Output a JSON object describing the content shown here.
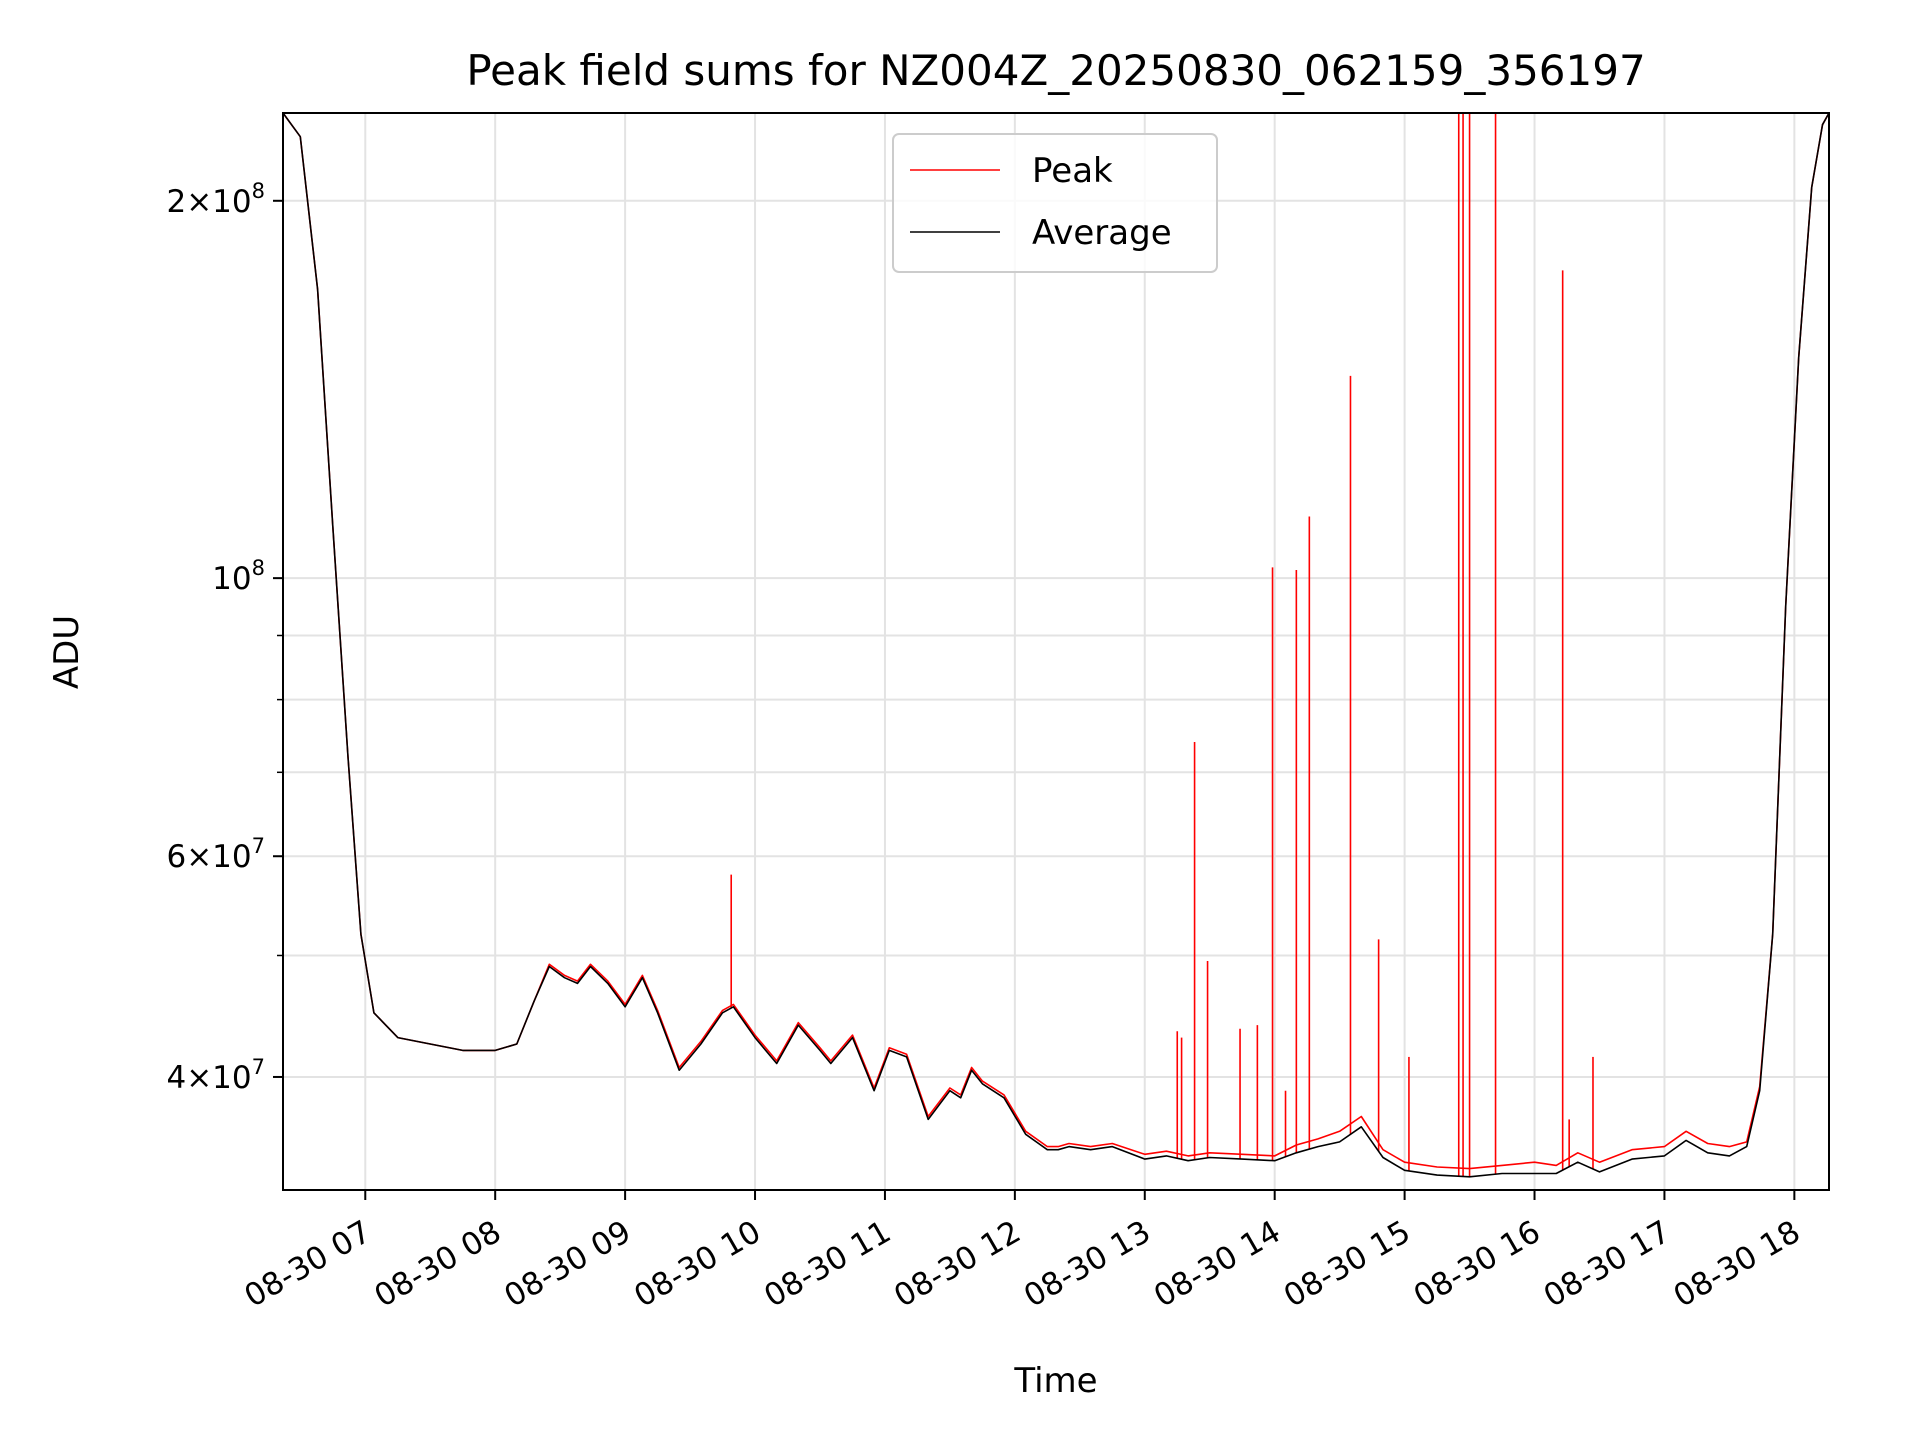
{
  "chart_data": {
    "type": "line",
    "title": "Peak field sums for NZ004Z_20250830_062159_356197",
    "xlabel": "Time",
    "ylabel": "ADU",
    "y_scale": "log",
    "ylim": [
      32500000,
      235000000
    ],
    "xlim": [
      "2025-08-30 06:22",
      "2025-08-30 18:16"
    ],
    "grid": true,
    "legend_position": "upper center",
    "colors": {
      "Peak": "#ff0000",
      "Average": "#000000"
    },
    "x_ticks": [
      "08-30 07",
      "08-30 08",
      "08-30 09",
      "08-30 10",
      "08-30 11",
      "08-30 12",
      "08-30 13",
      "08-30 14",
      "08-30 15",
      "08-30 16",
      "08-30 17",
      "08-30 18"
    ],
    "y_tick_labels": {
      "y4e7": {
        "base": "4×10",
        "exp": "7"
      },
      "y6e7": {
        "base": "6×10",
        "exp": "7"
      },
      "y1e8": {
        "base": "10",
        "exp": "8"
      },
      "y2e8": {
        "base": "2×10",
        "exp": "8"
      }
    },
    "series": [
      {
        "name": "Average",
        "x": [
          "2025-08-30 06:22",
          "2025-08-30 06:30",
          "2025-08-30 06:38",
          "2025-08-30 06:45",
          "2025-08-30 06:52",
          "2025-08-30 06:58",
          "2025-08-30 07:04",
          "2025-08-30 07:15",
          "2025-08-30 07:30",
          "2025-08-30 07:45",
          "2025-08-30 08:00",
          "2025-08-30 08:10",
          "2025-08-30 08:18",
          "2025-08-30 08:25",
          "2025-08-30 08:32",
          "2025-08-30 08:38",
          "2025-08-30 08:44",
          "2025-08-30 08:52",
          "2025-08-30 09:00",
          "2025-08-30 09:08",
          "2025-08-30 09:15",
          "2025-08-30 09:25",
          "2025-08-30 09:35",
          "2025-08-30 09:45",
          "2025-08-30 09:50",
          "2025-08-30 10:00",
          "2025-08-30 10:10",
          "2025-08-30 10:20",
          "2025-08-30 10:30",
          "2025-08-30 10:35",
          "2025-08-30 10:45",
          "2025-08-30 10:55",
          "2025-08-30 11:02",
          "2025-08-30 11:10",
          "2025-08-30 11:20",
          "2025-08-30 11:30",
          "2025-08-30 11:35",
          "2025-08-30 11:40",
          "2025-08-30 11:45",
          "2025-08-30 11:55",
          "2025-08-30 12:05",
          "2025-08-30 12:15",
          "2025-08-30 12:20",
          "2025-08-30 12:25",
          "2025-08-30 12:35",
          "2025-08-30 12:45",
          "2025-08-30 13:00",
          "2025-08-30 13:10",
          "2025-08-30 13:20",
          "2025-08-30 13:30",
          "2025-08-30 13:45",
          "2025-08-30 14:00",
          "2025-08-30 14:10",
          "2025-08-30 14:20",
          "2025-08-30 14:30",
          "2025-08-30 14:40",
          "2025-08-30 14:50",
          "2025-08-30 15:00",
          "2025-08-30 15:15",
          "2025-08-30 15:30",
          "2025-08-30 15:45",
          "2025-08-30 16:00",
          "2025-08-30 16:10",
          "2025-08-30 16:20",
          "2025-08-30 16:30",
          "2025-08-30 16:45",
          "2025-08-30 17:00",
          "2025-08-30 17:10",
          "2025-08-30 17:20",
          "2025-08-30 17:30",
          "2025-08-30 17:38",
          "2025-08-30 17:44",
          "2025-08-30 17:50",
          "2025-08-30 17:56",
          "2025-08-30 18:02",
          "2025-08-30 18:08",
          "2025-08-30 18:13",
          "2025-08-30 18:16"
        ],
        "y": [
          235000000,
          225000000,
          170000000,
          110000000,
          72000000,
          52000000,
          45000000,
          43000000,
          42500000,
          42000000,
          42000000,
          42500000,
          46000000,
          49000000,
          48000000,
          47500000,
          49000000,
          47500000,
          45500000,
          48000000,
          45000000,
          40500000,
          42500000,
          45000000,
          45500000,
          43000000,
          41000000,
          44000000,
          42000000,
          41000000,
          43000000,
          39000000,
          42000000,
          41500000,
          37000000,
          39000000,
          38500000,
          40500000,
          39500000,
          38500000,
          36000000,
          35000000,
          35000000,
          35200000,
          35000000,
          35200000,
          34400000,
          34600000,
          34300000,
          34500000,
          34400000,
          34300000,
          34800000,
          35200000,
          35500000,
          36500000,
          34500000,
          33700000,
          33400000,
          33300000,
          33500000,
          33500000,
          33500000,
          34200000,
          33600000,
          34400000,
          34600000,
          35600000,
          34800000,
          34600000,
          35200000,
          39000000,
          52000000,
          95000000,
          150000000,
          205000000,
          230000000,
          235000000
        ]
      },
      {
        "name": "Peak",
        "x": [
          "2025-08-30 06:22",
          "2025-08-30 06:30",
          "2025-08-30 06:38",
          "2025-08-30 06:45",
          "2025-08-30 06:52",
          "2025-08-30 06:58",
          "2025-08-30 07:04",
          "2025-08-30 07:15",
          "2025-08-30 07:30",
          "2025-08-30 07:45",
          "2025-08-30 08:00",
          "2025-08-30 08:10",
          "2025-08-30 08:18",
          "2025-08-30 08:25",
          "2025-08-30 08:32",
          "2025-08-30 08:38",
          "2025-08-30 08:44",
          "2025-08-30 08:52",
          "2025-08-30 09:00",
          "2025-08-30 09:08",
          "2025-08-30 09:15",
          "2025-08-30 09:25",
          "2025-08-30 09:35",
          "2025-08-30 09:45",
          "2025-08-30 09:50",
          "2025-08-30 10:00",
          "2025-08-30 10:10",
          "2025-08-30 10:20",
          "2025-08-30 10:30",
          "2025-08-30 10:35",
          "2025-08-30 10:45",
          "2025-08-30 10:55",
          "2025-08-30 11:02",
          "2025-08-30 11:10",
          "2025-08-30 11:20",
          "2025-08-30 11:30",
          "2025-08-30 11:35",
          "2025-08-30 11:40",
          "2025-08-30 11:45",
          "2025-08-30 11:55",
          "2025-08-30 12:05",
          "2025-08-30 12:15",
          "2025-08-30 12:20",
          "2025-08-30 12:25",
          "2025-08-30 12:35",
          "2025-08-30 12:45",
          "2025-08-30 13:00",
          "2025-08-30 13:10",
          "2025-08-30 13:20",
          "2025-08-30 13:30",
          "2025-08-30 13:45",
          "2025-08-30 14:00",
          "2025-08-30 14:10",
          "2025-08-30 14:20",
          "2025-08-30 14:30",
          "2025-08-30 14:40",
          "2025-08-30 14:50",
          "2025-08-30 15:00",
          "2025-08-30 15:15",
          "2025-08-30 15:30",
          "2025-08-30 15:45",
          "2025-08-30 16:00",
          "2025-08-30 16:10",
          "2025-08-30 16:20",
          "2025-08-30 16:30",
          "2025-08-30 16:45",
          "2025-08-30 17:00",
          "2025-08-30 17:10",
          "2025-08-30 17:20",
          "2025-08-30 17:30",
          "2025-08-30 17:38",
          "2025-08-30 17:44",
          "2025-08-30 17:50",
          "2025-08-30 17:56",
          "2025-08-30 18:02",
          "2025-08-30 18:08",
          "2025-08-30 18:13",
          "2025-08-30 18:16"
        ],
        "y": [
          235000000,
          225000000,
          170000000,
          110000000,
          72000000,
          52000000,
          45000000,
          43000000,
          42500000,
          42000000,
          42000000,
          42500000,
          46000000,
          49200000,
          48200000,
          47700000,
          49200000,
          47700000,
          45700000,
          48200000,
          45200000,
          40700000,
          42700000,
          45200000,
          45700000,
          43200000,
          41200000,
          44200000,
          42200000,
          41200000,
          43200000,
          39200000,
          42200000,
          41700000,
          37200000,
          39200000,
          38700000,
          40700000,
          39700000,
          38700000,
          36200000,
          35200000,
          35200000,
          35400000,
          35200000,
          35400000,
          34700000,
          34900000,
          34600000,
          34800000,
          34700000,
          34600000,
          35300000,
          35700000,
          36200000,
          37200000,
          35000000,
          34200000,
          33900000,
          33800000,
          34000000,
          34200000,
          34000000,
          34800000,
          34200000,
          35000000,
          35200000,
          36200000,
          35400000,
          35200000,
          35500000,
          39300000,
          52000000,
          95000000,
          150000000,
          205000000,
          230000000,
          235000000
        ]
      }
    ],
    "peak_spikes": [
      {
        "x": "2025-08-30 09:49",
        "y": 58000000
      },
      {
        "x": "2025-08-30 13:15",
        "y": 43500000
      },
      {
        "x": "2025-08-30 13:17",
        "y": 43000000
      },
      {
        "x": "2025-08-30 13:23",
        "y": 74000000
      },
      {
        "x": "2025-08-30 13:29",
        "y": 49500000
      },
      {
        "x": "2025-08-30 13:44",
        "y": 43700000
      },
      {
        "x": "2025-08-30 13:52",
        "y": 44000000
      },
      {
        "x": "2025-08-30 13:59",
        "y": 102000000
      },
      {
        "x": "2025-08-30 14:05",
        "y": 39000000
      },
      {
        "x": "2025-08-30 14:10",
        "y": 101500000
      },
      {
        "x": "2025-08-30 14:16",
        "y": 112000000
      },
      {
        "x": "2025-08-30 14:35",
        "y": 145000000
      },
      {
        "x": "2025-08-30 14:48",
        "y": 51500000
      },
      {
        "x": "2025-08-30 15:02",
        "y": 41500000
      },
      {
        "x": "2025-08-30 15:25",
        "y": 235000000
      },
      {
        "x": "2025-08-30 15:27",
        "y": 235000000
      },
      {
        "x": "2025-08-30 15:30",
        "y": 235000000
      },
      {
        "x": "2025-08-30 15:42",
        "y": 235000000
      },
      {
        "x": "2025-08-30 16:13",
        "y": 176000000
      },
      {
        "x": "2025-08-30 16:16",
        "y": 37000000
      },
      {
        "x": "2025-08-30 16:27",
        "y": 41500000
      }
    ]
  }
}
